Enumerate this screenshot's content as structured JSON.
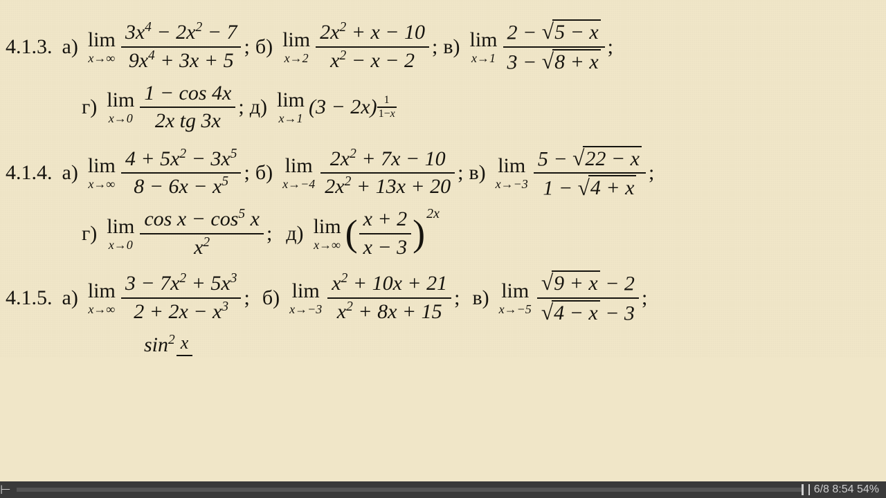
{
  "background_color": "#f0e6c8",
  "text_color": "#15130e",
  "font_family": "Times New Roman, serif",
  "base_fontsize": 30,
  "sub_fontsize": 18,
  "progress": {
    "bg": "#3a3a3a",
    "text": "6/8  8:54  54%",
    "text_color": "#cfcfcf"
  },
  "p413": {
    "num": "4.1.3.",
    "a": {
      "lbl": "а)",
      "to": "x→∞",
      "num": "3x⁴ − 2x² − 7",
      "den": "9x⁴ + 3x + 5"
    },
    "b": {
      "lbl": "б)",
      "to": "x→2",
      "num": "2x² + x − 10",
      "den": "x² − x − 2"
    },
    "v": {
      "lbl": "в)",
      "to": "x→1",
      "num_pre": "2 − ",
      "num_rad": "5 − x",
      "den_pre": "3 − ",
      "den_rad": "8 + x"
    },
    "g": {
      "lbl": "г)",
      "to": "x→0",
      "num": "1 − cos 4x",
      "den": "2x tg 3x"
    },
    "d": {
      "lbl": "д)",
      "to": "x→1",
      "base": "(3 − 2x)",
      "exp_n": "1",
      "exp_d": "1−x"
    }
  },
  "p414": {
    "num": "4.1.4.",
    "a": {
      "lbl": "а)",
      "to": "x→∞",
      "num": "4 + 5x² − 3x⁵",
      "den": "8 − 6x − x⁵"
    },
    "b": {
      "lbl": "б)",
      "to": "x→−4",
      "num": "2x² + 7x − 10",
      "den": "2x² + 13x + 20"
    },
    "v": {
      "lbl": "в)",
      "to": "x→−3",
      "num_pre": "5 − ",
      "num_rad": "22 − x",
      "den_pre": "1 − ",
      "den_rad": "4 + x"
    },
    "g": {
      "lbl": "г)",
      "to": "x→0",
      "num": "cos x − cos⁵ x",
      "den": "x²"
    },
    "d": {
      "lbl": "д)",
      "to": "x→∞",
      "inner_n": "x + 2",
      "inner_d": "x − 3",
      "exp": "2x"
    }
  },
  "p415": {
    "num": "4.1.5.",
    "a": {
      "lbl": "а)",
      "to": "x→∞",
      "num": "3 − 7x² + 5x³",
      "den": "2 + 2x − x³"
    },
    "b": {
      "lbl": "б)",
      "to": "x→−3",
      "num": "x² + 10x + 21",
      "den": "x² + 8x + 15"
    },
    "v": {
      "lbl": "в)",
      "to": "x→−5",
      "num_rad": "9 + x",
      "num_post": " − 2",
      "den_rad": "4 − x",
      "den_post": " − 3"
    }
  },
  "tail": {
    "text": "sin²",
    "frac_n": "x",
    "frac_d": "  "
  }
}
